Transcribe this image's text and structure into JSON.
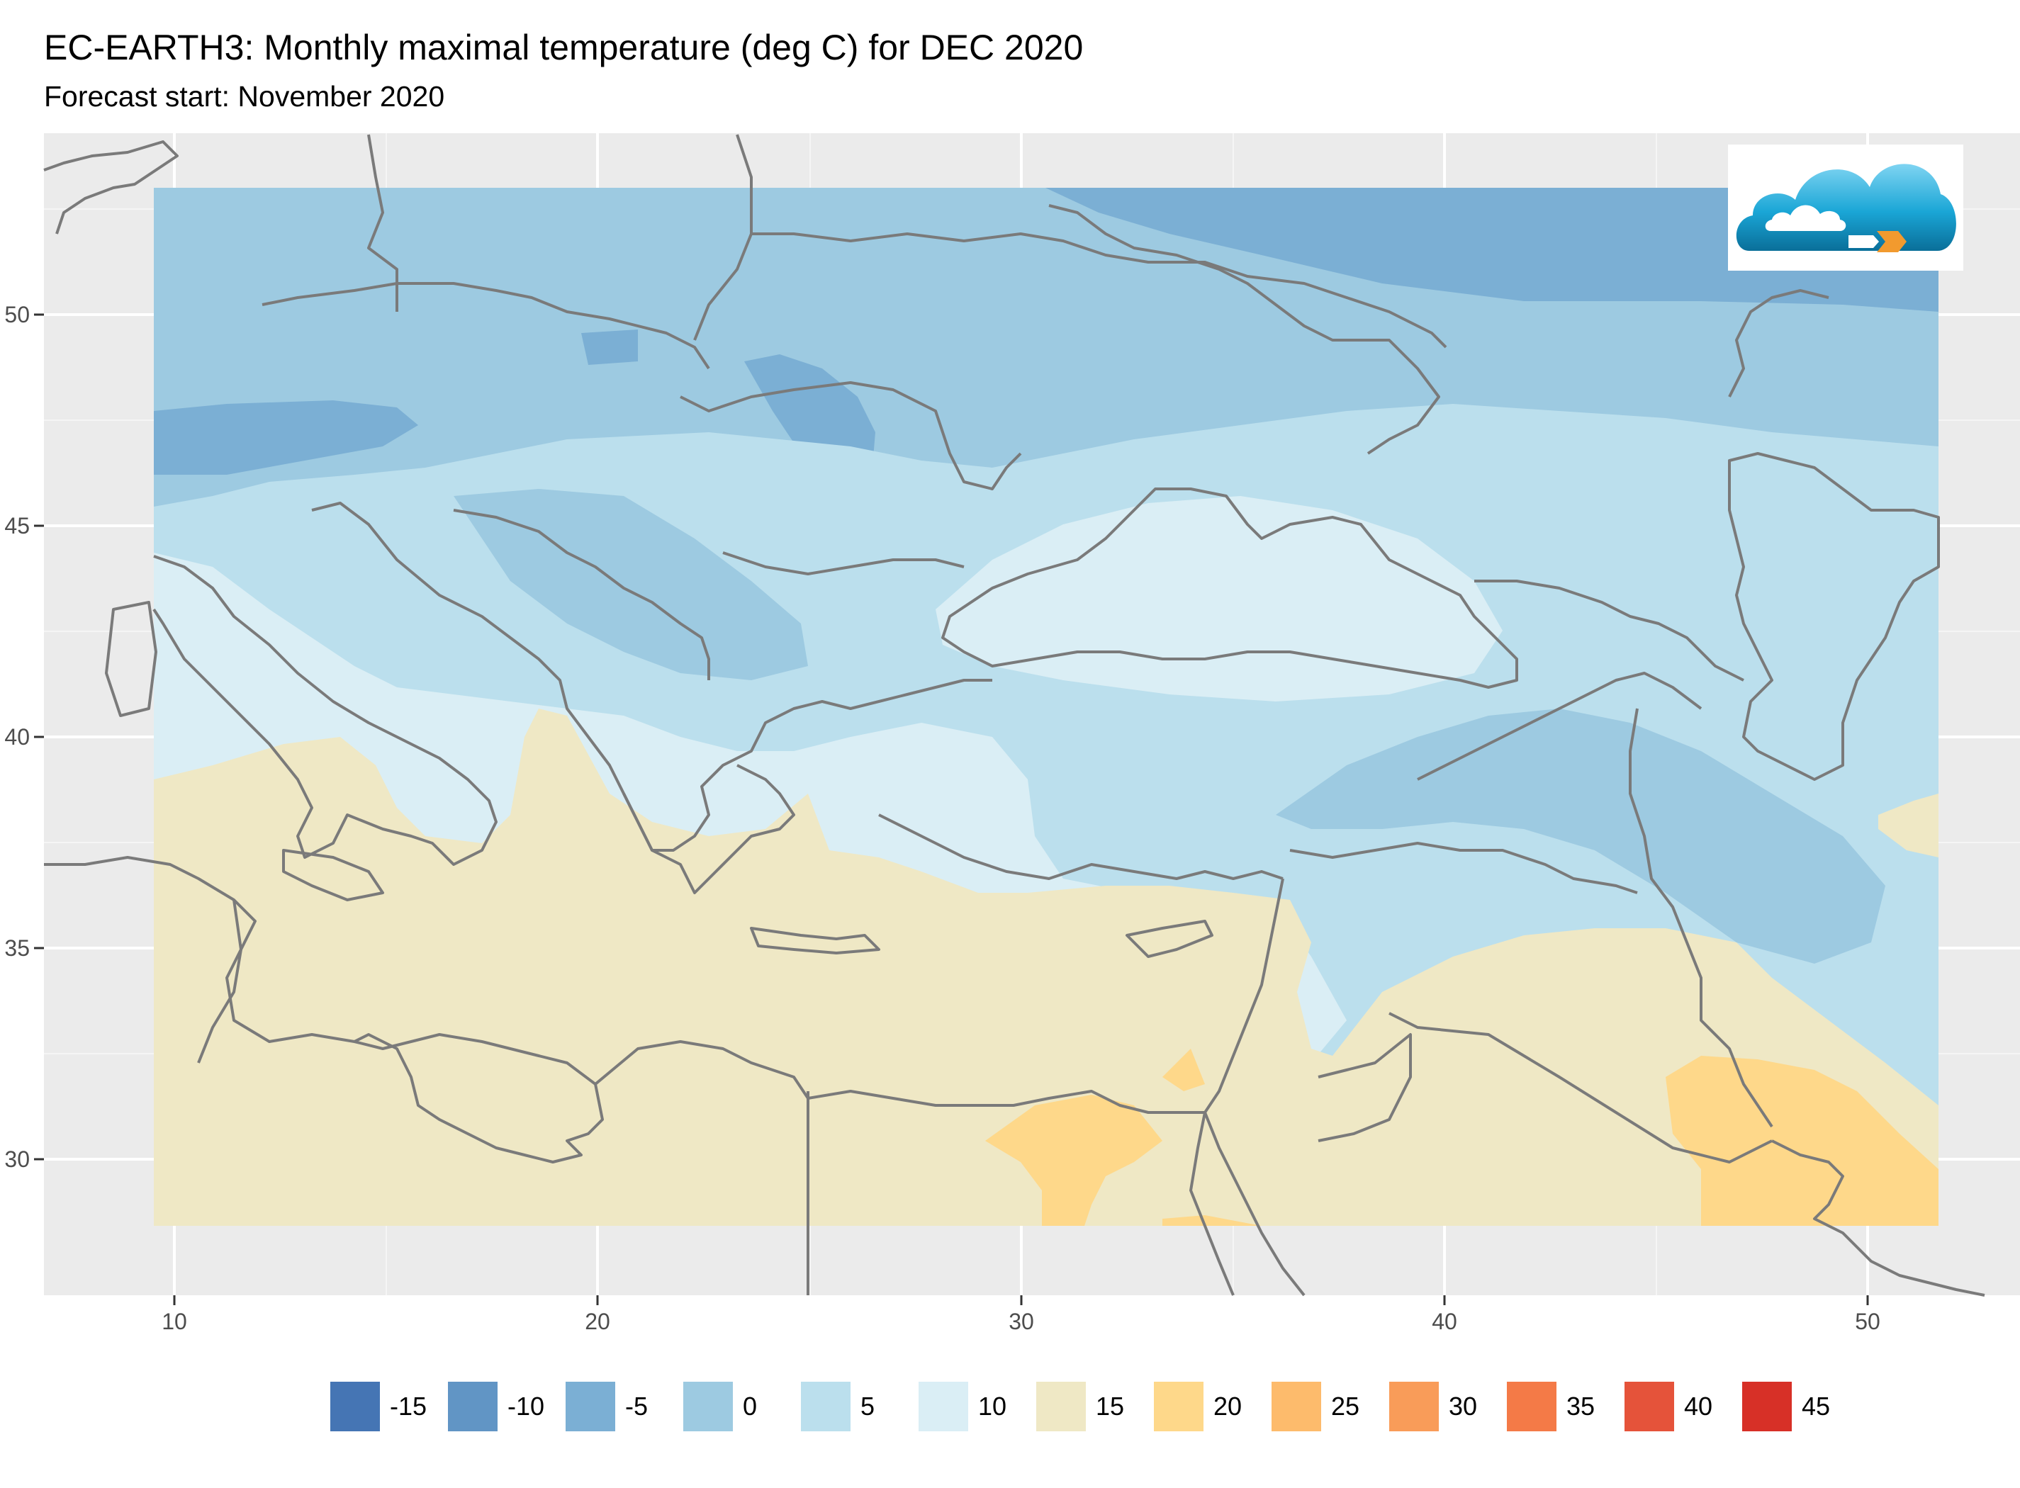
{
  "header": {
    "title": "EC-EARTH3: Monthly maximal temperature (deg C) for DEC 2020",
    "subtitle": "Forecast start: November 2020"
  },
  "axes": {
    "x_ticks": [
      "10",
      "20",
      "30",
      "40",
      "50"
    ],
    "y_ticks": [
      "30",
      "35",
      "40",
      "45",
      "50"
    ],
    "x_range": [
      7,
      54
    ],
    "y_range": [
      27,
      54
    ]
  },
  "legend": {
    "entries": [
      {
        "label": "-15",
        "color": "#4575b4"
      },
      {
        "label": "-10",
        "color": "#6195c5"
      },
      {
        "label": "-5",
        "color": "#7bafd4"
      },
      {
        "label": "0",
        "color": "#9dcae1"
      },
      {
        "label": "5",
        "color": "#bbdfed"
      },
      {
        "label": "10",
        "color": "#daeef5"
      },
      {
        "label": "15",
        "color": "#efe8c5"
      },
      {
        "label": "20",
        "color": "#fed88a"
      },
      {
        "label": "25",
        "color": "#fdbb6c"
      },
      {
        "label": "30",
        "color": "#f99c59"
      },
      {
        "label": "35",
        "color": "#f47a47"
      },
      {
        "label": "40",
        "color": "#e5533a"
      },
      {
        "label": "45",
        "color": "#d73027"
      }
    ]
  },
  "map_style": {
    "panel_background": "#ebebeb",
    "gridline_color": "#ffffff",
    "border_color": "#7a7a7a"
  },
  "logo": {
    "name": "cloud-logo-icon"
  }
}
